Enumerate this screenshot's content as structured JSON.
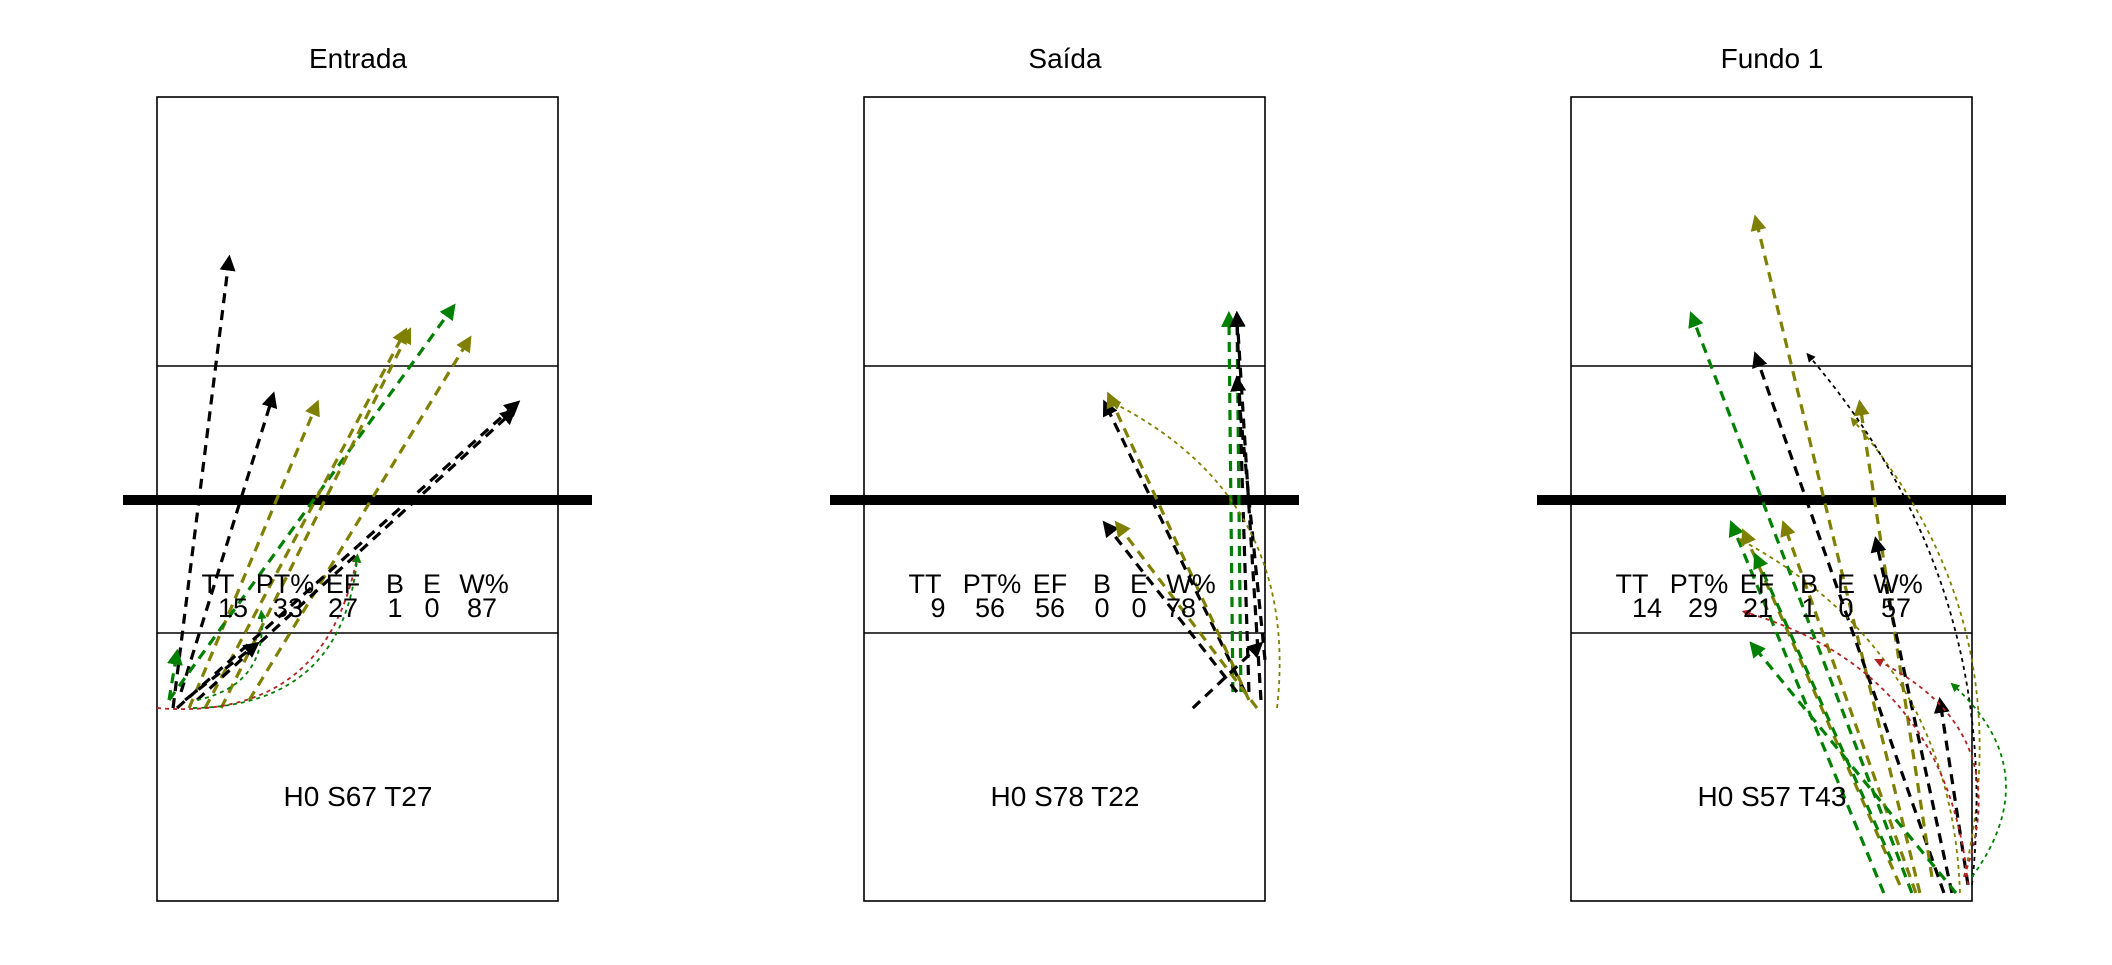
{
  "colors": {
    "green": "#008000",
    "olive": "#808000",
    "black": "#000000",
    "red": "#b22222"
  },
  "chart_data": [
    {
      "type": "scatter",
      "title": "Entrada",
      "stats": {
        "headers": [
          "TT",
          "PT%",
          "EF",
          "B",
          "E",
          "W%"
        ],
        "values": [
          "15",
          "33",
          "27",
          "1",
          "0",
          "87"
        ]
      },
      "footer": "H0 S67 T27",
      "arrows": [
        {
          "from": [
            0.4,
            2.4
          ],
          "to": [
            1.8,
            8.0
          ],
          "color": "black",
          "style": "dashed"
        },
        {
          "from": [
            0.6,
            2.6
          ],
          "to": [
            2.9,
            6.3
          ],
          "color": "black",
          "style": "dashed"
        },
        {
          "from": [
            0.8,
            2.4
          ],
          "to": [
            4.0,
            6.2
          ],
          "color": "olive",
          "style": "dashed"
        },
        {
          "from": [
            0.3,
            2.5
          ],
          "to": [
            7.4,
            7.4
          ],
          "color": "green",
          "style": "dashed"
        },
        {
          "from": [
            1.2,
            2.4
          ],
          "to": [
            6.2,
            7.1
          ],
          "color": "olive",
          "style": "dashed"
        },
        {
          "from": [
            1.6,
            2.4
          ],
          "to": [
            6.3,
            7.1
          ],
          "color": "olive",
          "style": "dashed"
        },
        {
          "from": [
            2.3,
            2.5
          ],
          "to": [
            7.8,
            7.0
          ],
          "color": "olive",
          "style": "dashed"
        },
        {
          "from": [
            0.5,
            2.4
          ],
          "to": [
            9.0,
            6.2
          ],
          "color": "black",
          "style": "dashed"
        },
        {
          "from": [
            1.0,
            2.5
          ],
          "to": [
            8.9,
            6.1
          ],
          "color": "black",
          "style": "dashed"
        },
        {
          "from": [
            0.3,
            2.5
          ],
          "to": [
            0.5,
            3.1
          ],
          "color": "green",
          "style": "dashed"
        },
        {
          "from": [
            1.0,
            2.5
          ],
          "to": [
            2.6,
            3.6
          ],
          "color": "green",
          "style": "dotted"
        },
        {
          "from": [
            0.7,
            2.5
          ],
          "to": [
            2.5,
            3.2
          ],
          "color": "black",
          "style": "dashed"
        },
        {
          "from": [
            0.0,
            2.4
          ],
          "to": [
            5.0,
            4.3
          ],
          "color": "red",
          "style": "dotted"
        },
        {
          "from": [
            0.9,
            2.4
          ],
          "to": [
            5.0,
            4.3
          ],
          "color": "green",
          "style": "dotted"
        }
      ]
    },
    {
      "type": "scatter",
      "title": "Saída",
      "stats": {
        "headers": [
          "TT",
          "PT%",
          "EF",
          "B",
          "E",
          "W%"
        ],
        "values": [
          "9",
          "56",
          "56",
          "0",
          "0",
          "78"
        ]
      },
      "footer": "H0 S78 T22",
      "arrows": [
        {
          "from": [
            9.2,
            2.6
          ],
          "to": [
            9.1,
            7.3
          ],
          "color": "green",
          "style": "dashed"
        },
        {
          "from": [
            9.4,
            2.6
          ],
          "to": [
            9.3,
            7.3
          ],
          "color": "green",
          "style": "dashed"
        },
        {
          "from": [
            9.6,
            2.6
          ],
          "to": [
            9.3,
            7.3
          ],
          "color": "black",
          "style": "dashed"
        },
        {
          "from": [
            9.9,
            2.5
          ],
          "to": [
            9.3,
            7.3
          ],
          "color": "black",
          "style": "dashed"
        },
        {
          "from": [
            10.0,
            3.0
          ],
          "to": [
            9.3,
            6.5
          ],
          "color": "black",
          "style": "dashed"
        },
        {
          "from": [
            9.5,
            2.6
          ],
          "to": [
            6.0,
            6.2
          ],
          "color": "black",
          "style": "dashed"
        },
        {
          "from": [
            9.6,
            2.5
          ],
          "to": [
            6.1,
            6.3
          ],
          "color": "olive",
          "style": "dashed"
        },
        {
          "from": [
            9.3,
            2.6
          ],
          "to": [
            6.0,
            4.7
          ],
          "color": "black",
          "style": "dashed"
        },
        {
          "from": [
            9.8,
            2.4
          ],
          "to": [
            6.3,
            4.7
          ],
          "color": "olive",
          "style": "dashed"
        },
        {
          "from": [
            10.3,
            2.4
          ],
          "to": [
            6.2,
            6.2
          ],
          "color": "olive",
          "style": "dotted"
        },
        {
          "from": [
            8.2,
            2.4
          ],
          "to": [
            9.9,
            3.2
          ],
          "color": "black",
          "style": "dashed"
        }
      ]
    },
    {
      "type": "scatter",
      "title": "Fundo 1",
      "stats": {
        "headers": [
          "TT",
          "PT%",
          "EF",
          "B",
          "E",
          "W%"
        ],
        "values": [
          "14",
          "29",
          "21",
          "1",
          "0",
          "57"
        ]
      },
      "footer": "H0 S57 T43",
      "arrows": [
        {
          "from": [
            8.5,
            0.1
          ],
          "to": [
            3.0,
            7.3
          ],
          "color": "green",
          "style": "dashed"
        },
        {
          "from": [
            8.7,
            0.1
          ],
          "to": [
            4.6,
            8.5
          ],
          "color": "olive",
          "style": "dashed"
        },
        {
          "from": [
            9.3,
            0.1
          ],
          "to": [
            4.6,
            6.8
          ],
          "color": "black",
          "style": "dashed"
        },
        {
          "from": [
            7.8,
            0.1
          ],
          "to": [
            4.0,
            4.7
          ],
          "color": "green",
          "style": "dashed"
        },
        {
          "from": [
            8.2,
            0.2
          ],
          "to": [
            4.3,
            4.6
          ],
          "color": "olive",
          "style": "dashed"
        },
        {
          "from": [
            8.0,
            0.5
          ],
          "to": [
            4.6,
            4.3
          ],
          "color": "green",
          "style": "dashed"
        },
        {
          "from": [
            8.6,
            0.1
          ],
          "to": [
            5.3,
            4.7
          ],
          "color": "olive",
          "style": "dashed"
        },
        {
          "from": [
            9.0,
            0.3
          ],
          "to": [
            7.2,
            6.2
          ],
          "color": "olive",
          "style": "dashed"
        },
        {
          "from": [
            9.5,
            0.1
          ],
          "to": [
            7.6,
            4.5
          ],
          "color": "black",
          "style": "dashed"
        },
        {
          "from": [
            9.6,
            0.1
          ],
          "to": [
            4.5,
            3.2
          ],
          "color": "green",
          "style": "dashed"
        },
        {
          "from": [
            9.9,
            0.2
          ],
          "to": [
            9.2,
            2.5
          ],
          "color": "black",
          "style": "dashed"
        },
        {
          "from": [
            9.8,
            0.3
          ],
          "to": [
            7.0,
            6.0
          ],
          "color": "olive",
          "style": "dotted"
        },
        {
          "from": [
            10.0,
            0.2
          ],
          "to": [
            5.9,
            6.8
          ],
          "color": "black",
          "style": "dotted"
        },
        {
          "from": [
            9.7,
            0.1
          ],
          "to": [
            4.2,
            4.5
          ],
          "color": "olive",
          "style": "dotted"
        },
        {
          "from": [
            9.9,
            0.2
          ],
          "to": [
            4.3,
            3.6
          ],
          "color": "red",
          "style": "dotted"
        },
        {
          "from": [
            10.0,
            0.3
          ],
          "to": [
            9.5,
            2.7
          ],
          "color": "green",
          "style": "dotted"
        },
        {
          "from": [
            9.8,
            0.3
          ],
          "to": [
            7.6,
            3.0
          ],
          "color": "red",
          "style": "dotted"
        }
      ]
    }
  ]
}
